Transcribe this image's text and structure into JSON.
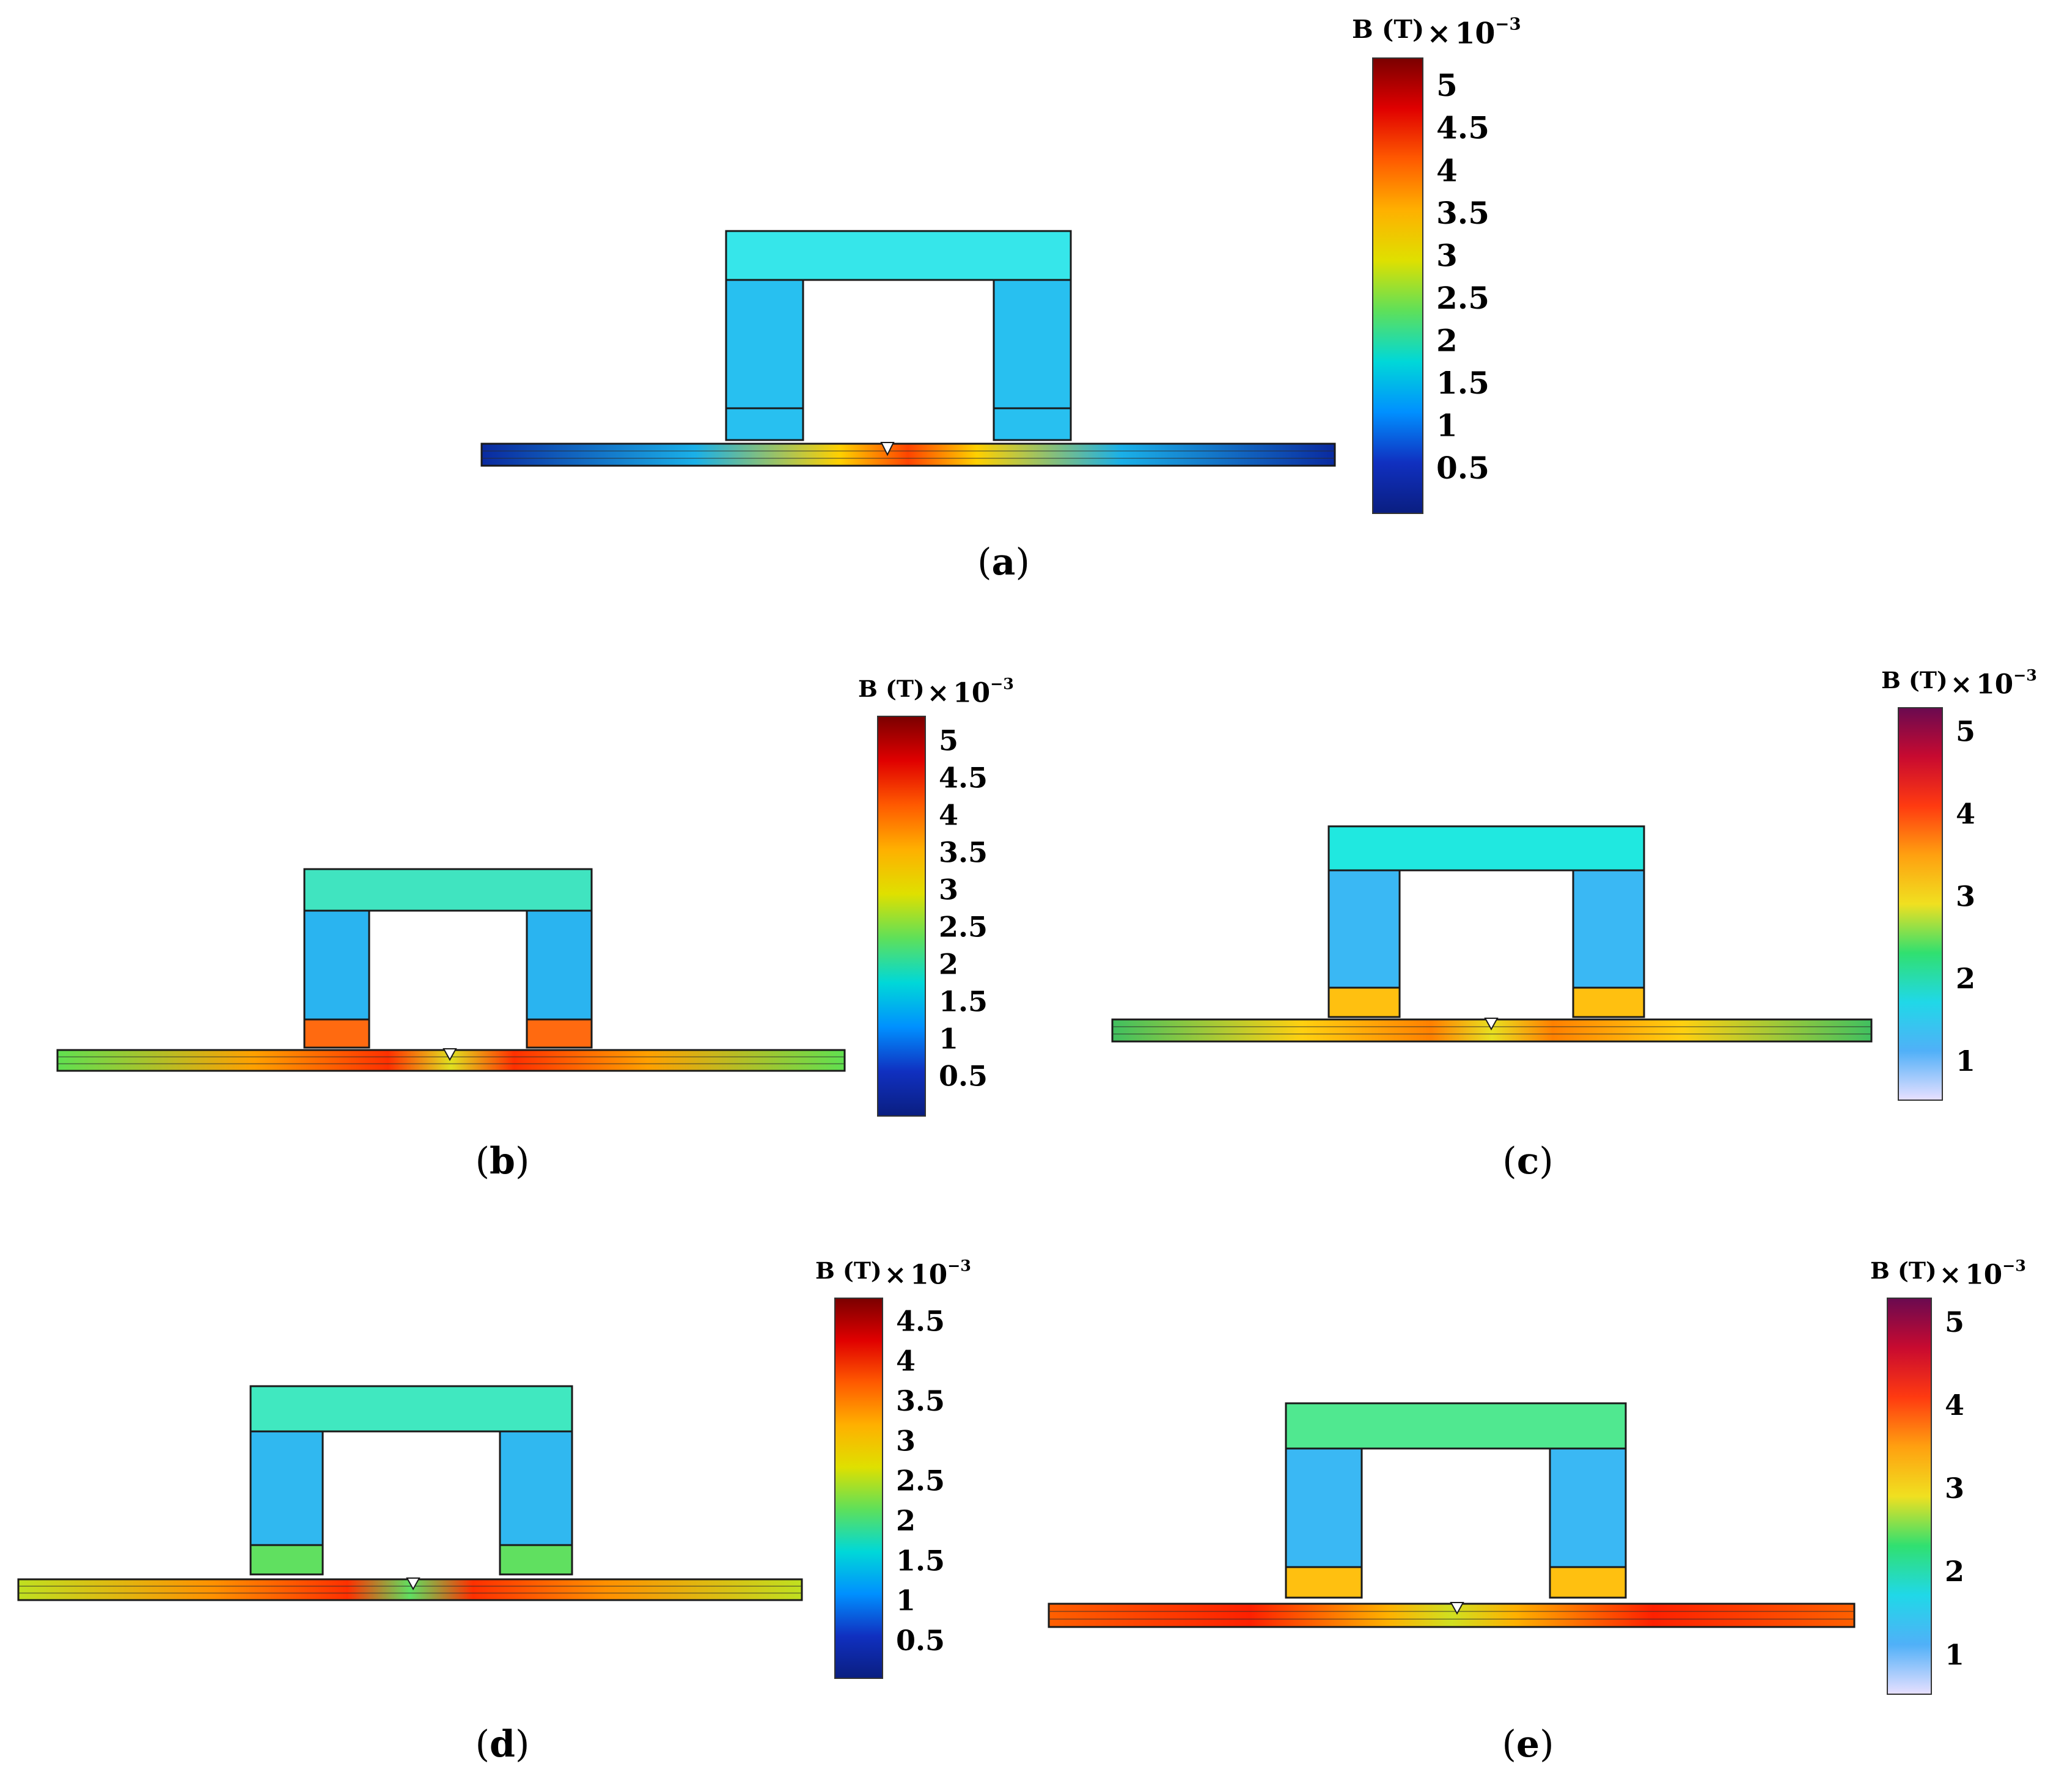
{
  "panels": [
    {
      "id": "a",
      "caption_open": "(",
      "caption_letter": "a",
      "caption_close": ")",
      "colorbar": {
        "title": "B (T)",
        "scale_prefix": "×",
        "scale_base": "10",
        "scale_exp": "−3",
        "ticks": [
          "5",
          "4.5",
          "4",
          "3.5",
          "3",
          "2.5",
          "2",
          "1.5",
          "1",
          "0.5"
        ],
        "colormap": "rainbow",
        "colors": [
          "#7a0000",
          "#e00000",
          "#ff5a00",
          "#ffb000",
          "#dfe000",
          "#5ee05a",
          "#00d8d8",
          "#0090ff",
          "#1030c0",
          "#0a1e80"
        ]
      },
      "core_color": "#28c0f0",
      "bar_color": "#36e6ea",
      "pad_color": "#28c0f0",
      "plate_colors": [
        "#0a2aa0",
        "#1ab0e8",
        "#ffd000",
        "#ff4400"
      ]
    },
    {
      "id": "b",
      "caption_open": "(",
      "caption_letter": "b",
      "caption_close": ")",
      "colorbar": {
        "title": "B (T)",
        "scale_prefix": "×",
        "scale_base": "10",
        "scale_exp": "−3",
        "ticks": [
          "5",
          "4.5",
          "4",
          "3.5",
          "3",
          "2.5",
          "2",
          "1.5",
          "1",
          "0.5"
        ],
        "colormap": "rainbow",
        "colors": [
          "#7a0000",
          "#e00000",
          "#ff5a00",
          "#ffb000",
          "#dfe000",
          "#5ee05a",
          "#00d8d8",
          "#0090ff",
          "#1030c0",
          "#0a1e80"
        ]
      },
      "core_color": "#2ab4f0",
      "bar_color": "#40e4c0",
      "pad_color": "#ff6a10",
      "plate_colors": [
        "#60e050",
        "#ffa000",
        "#ff3000",
        "#e0e020"
      ]
    },
    {
      "id": "c",
      "caption_open": "(",
      "caption_letter": "c",
      "caption_close": ")",
      "colorbar": {
        "title": "B (T)",
        "scale_prefix": "×",
        "scale_base": "10",
        "scale_exp": "−3",
        "ticks": [
          "5",
          "4",
          "3",
          "2",
          "1"
        ],
        "colormap": "purple-rainbow",
        "colors": [
          "#6a0a50",
          "#c80a30",
          "#ff3a10",
          "#ffa010",
          "#f0e020",
          "#30e070",
          "#20d8e8",
          "#50b0f8",
          "#e8e0ff"
        ]
      },
      "core_color": "#3ab8f4",
      "bar_color": "#20e8e0",
      "pad_color": "#ffc010",
      "plate_colors": [
        "#40c060",
        "#ffd010",
        "#ff8000",
        "#e8e020"
      ]
    },
    {
      "id": "d",
      "caption_open": "(",
      "caption_letter": "d",
      "caption_close": ")",
      "colorbar": {
        "title": "B (T)",
        "scale_prefix": "×",
        "scale_base": "10",
        "scale_exp": "−3",
        "ticks": [
          "4.5",
          "4",
          "3.5",
          "3",
          "2.5",
          "2",
          "1.5",
          "1",
          "0.5"
        ],
        "colormap": "rainbow",
        "colors": [
          "#7a0000",
          "#e00000",
          "#ff5a00",
          "#ffb000",
          "#dfe000",
          "#5ee05a",
          "#00d8d8",
          "#0090ff",
          "#1030c0",
          "#0a1e80"
        ]
      },
      "core_color": "#30b8f0",
      "bar_color": "#40e8c0",
      "pad_color": "#60e060",
      "plate_colors": [
        "#c0e020",
        "#ff9000",
        "#ff3000",
        "#60e060"
      ]
    },
    {
      "id": "e",
      "caption_open": "(",
      "caption_letter": "e",
      "caption_close": ")",
      "colorbar": {
        "title": "B (T)",
        "scale_prefix": "×",
        "scale_base": "10",
        "scale_exp": "−3",
        "ticks": [
          "5",
          "4",
          "3",
          "2",
          "1"
        ],
        "colormap": "purple-rainbow",
        "colors": [
          "#6a0a50",
          "#c80a30",
          "#ff3a10",
          "#ffa010",
          "#f0e020",
          "#30e070",
          "#20d8e8",
          "#50b0f8",
          "#e8e0ff"
        ]
      },
      "core_color": "#3ab8f4",
      "bar_color": "#50e890",
      "pad_color": "#ffc010",
      "plate_colors": [
        "#ff6000",
        "#ff2000",
        "#ffb000",
        "#d0e020"
      ]
    }
  ]
}
